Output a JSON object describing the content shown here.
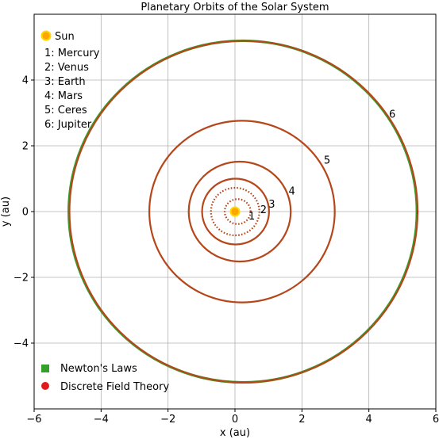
{
  "chart_data": {
    "type": "line",
    "title": "Planetary Orbits of the Solar System",
    "xlabel": "x (au)",
    "ylabel": "y (au)",
    "xlim": [
      -6,
      6
    ],
    "ylim": [
      -6,
      6
    ],
    "xticks": [
      -6,
      -4,
      -2,
      0,
      2,
      4,
      6
    ],
    "yticks": [
      -4,
      -2,
      0,
      2,
      4
    ],
    "grid": true,
    "sun": {
      "label": "Sun",
      "x": 0,
      "y": 0,
      "color": "#ffa500",
      "edge": "#ffd700"
    },
    "planet_legend": [
      "1: Mercury",
      "2: Venus",
      "3: Earth",
      "4: Mars",
      "5: Ceres",
      "6: Jupiter"
    ],
    "legend": [
      {
        "name": "Newton's Laws",
        "color": "#33a02c",
        "marker": "square"
      },
      {
        "name": "Discrete Field Theory",
        "color": "#e31a1c",
        "marker": "circle"
      }
    ],
    "legend_position": "lower-left",
    "series": [
      {
        "name": "Newton's Laws",
        "color": "#33a02c"
      },
      {
        "name": "Discrete Field Theory",
        "color": "#e31a1c"
      }
    ],
    "orbit_color": "#b5471a",
    "orbits": [
      {
        "label": "1",
        "a": 0.387,
        "e": 0.206,
        "style": "dotted",
        "label_at": [
          0.5,
          -0.15
        ]
      },
      {
        "label": "2",
        "a": 0.723,
        "e": 0.007,
        "style": "dotted",
        "label_at": [
          0.85,
          0.05
        ]
      },
      {
        "label": "3",
        "a": 1.0,
        "e": 0.017,
        "style": "solid",
        "label_at": [
          1.1,
          0.22
        ]
      },
      {
        "label": "4",
        "a": 1.524,
        "e": 0.093,
        "style": "solid",
        "label_at": [
          1.7,
          0.62
        ]
      },
      {
        "label": "5",
        "a": 2.77,
        "e": 0.076,
        "style": "solid",
        "label_at": [
          2.75,
          1.55
        ]
      },
      {
        "label": "6",
        "a": 5.2,
        "e": 0.049,
        "style": "solid",
        "label_at": [
          4.7,
          2.95
        ]
      }
    ]
  }
}
